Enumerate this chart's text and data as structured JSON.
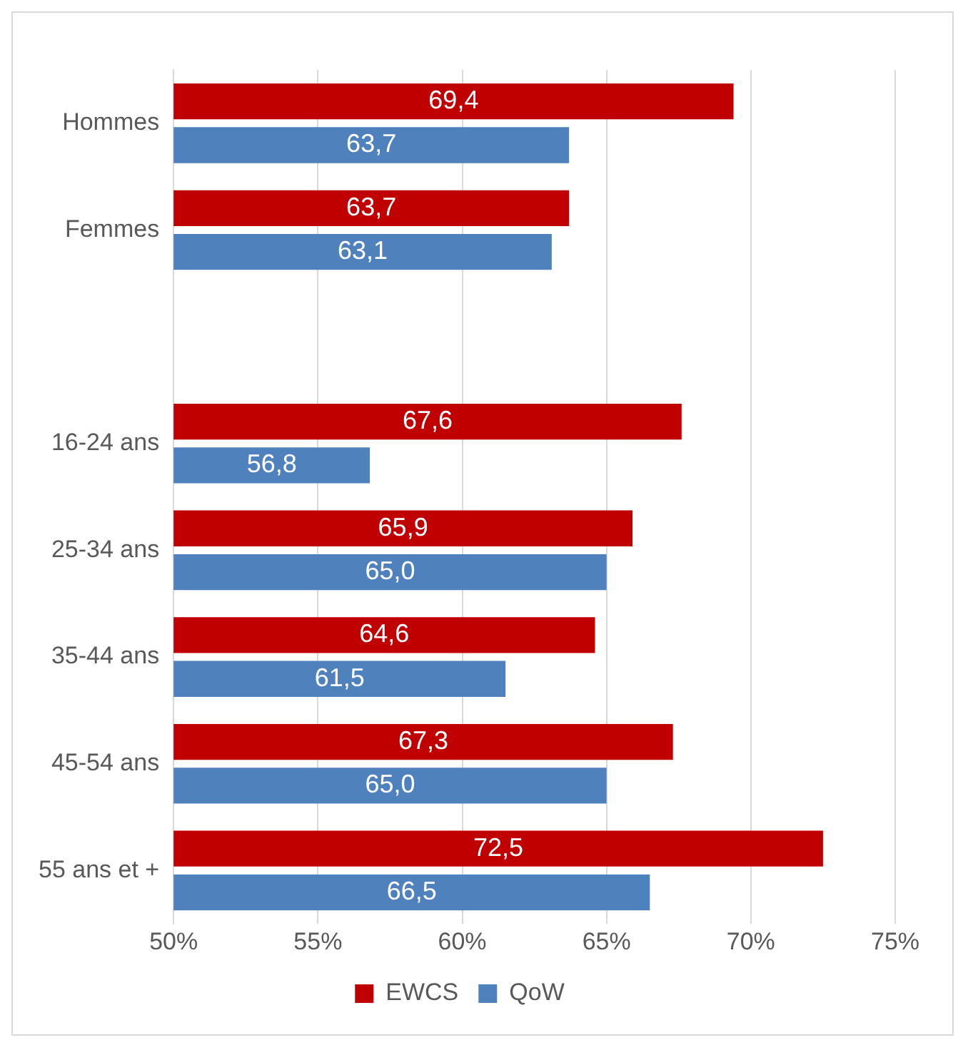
{
  "chart_data": {
    "type": "bar",
    "orientation": "horizontal",
    "categories": [
      "Hommes",
      "Femmes",
      null,
      "16-24 ans",
      "25-34 ans",
      "35-44 ans",
      "45-54 ans",
      "55 ans et +"
    ],
    "series": [
      {
        "name": "EWCS",
        "color": "#c00000",
        "values": [
          69.4,
          63.7,
          null,
          67.6,
          65.9,
          64.6,
          67.3,
          72.5
        ],
        "value_labels": [
          "69,4",
          "63,7",
          null,
          "67,6",
          "65,9",
          "64,6",
          "67,3",
          "72,5"
        ]
      },
      {
        "name": "QoW",
        "color": "#4f81bd",
        "values": [
          63.7,
          63.1,
          null,
          56.8,
          65.0,
          61.5,
          65.0,
          66.5
        ],
        "value_labels": [
          "63,7",
          "63,1",
          null,
          "56,8",
          "65,0",
          "61,5",
          "65,0",
          "66,5"
        ]
      }
    ],
    "xlim": [
      50,
      75
    ],
    "xticks": [
      {
        "value": 50,
        "label": "50%"
      },
      {
        "value": 55,
        "label": "55%"
      },
      {
        "value": 60,
        "label": "60%"
      },
      {
        "value": 65,
        "label": "65%"
      },
      {
        "value": 70,
        "label": "70%"
      },
      {
        "value": 75,
        "label": "75%"
      }
    ],
    "grid": "x",
    "legend": "bottom"
  }
}
